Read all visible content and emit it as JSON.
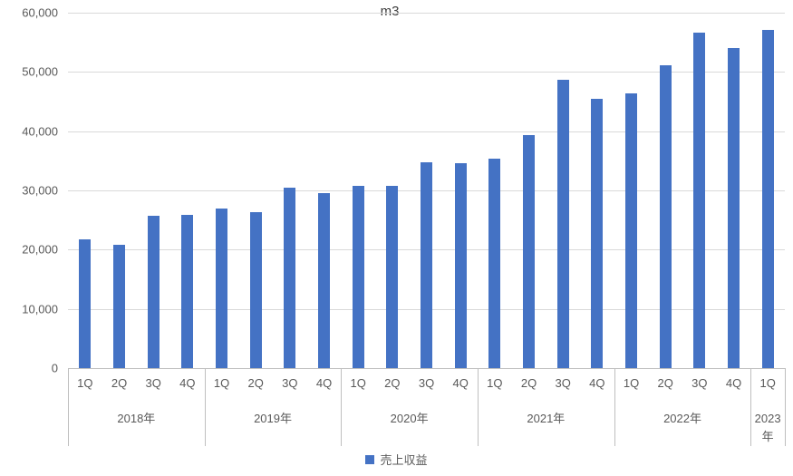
{
  "chart_data": {
    "type": "bar",
    "title": "m3",
    "ylabel": "",
    "xlabel": "",
    "ylim": [
      0,
      60000
    ],
    "ytick_interval": 10000,
    "ytick_labels": [
      "0",
      "10,000",
      "20,000",
      "30,000",
      "40,000",
      "50,000",
      "60,000"
    ],
    "grid": true,
    "legend_position": "bottom",
    "bar_color": "#4472c4",
    "series_name": "売上収益",
    "groups": [
      {
        "year": "2018年",
        "quarters": [
          "1Q",
          "2Q",
          "3Q",
          "4Q"
        ],
        "values": [
          21800,
          20900,
          25700,
          25900
        ]
      },
      {
        "year": "2019年",
        "quarters": [
          "1Q",
          "2Q",
          "3Q",
          "4Q"
        ],
        "values": [
          26900,
          26400,
          30400,
          29500
        ]
      },
      {
        "year": "2020年",
        "quarters": [
          "1Q",
          "2Q",
          "3Q",
          "4Q"
        ],
        "values": [
          30800,
          30800,
          34800,
          34600
        ]
      },
      {
        "year": "2021年",
        "quarters": [
          "1Q",
          "2Q",
          "3Q",
          "4Q"
        ],
        "values": [
          35400,
          39400,
          48700,
          45500
        ]
      },
      {
        "year": "2022年",
        "quarters": [
          "1Q",
          "2Q",
          "3Q",
          "4Q"
        ],
        "values": [
          46400,
          51100,
          56600,
          54000
        ]
      },
      {
        "year": "2023年",
        "quarters": [
          "1Q"
        ],
        "values": [
          57100
        ]
      }
    ]
  },
  "legend": {
    "label": "売上収益"
  },
  "colors": {
    "bar": "#4472c4",
    "gridline": "#d9d9d9",
    "axis_text": "#595959"
  }
}
